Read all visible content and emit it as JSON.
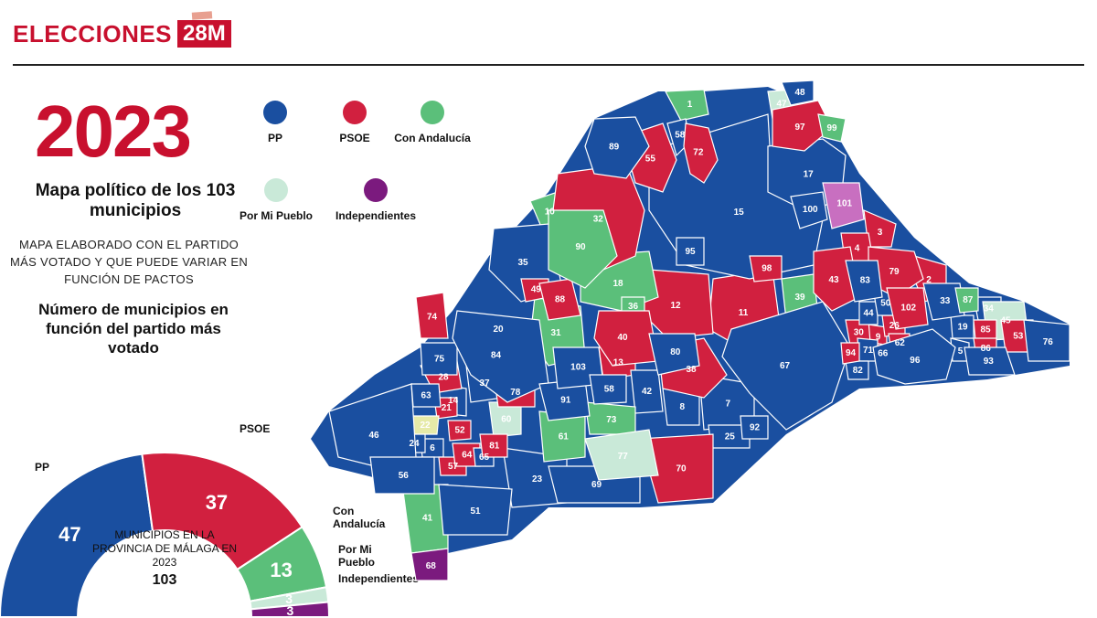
{
  "header": {
    "brand": "ELECCIONES",
    "tag": "28M"
  },
  "year": "2023",
  "subtitle": "Mapa político de los 103 municipios",
  "note": "MAPA ELABORADO CON EL PARTIDO MÁS VOTADO Y QUE PUEDE VARIAR EN FUNCIÓN DE PACTOS",
  "count_title": "Número de municipios en función del partido más votado",
  "legend": [
    {
      "label": "PP",
      "color": "#1a4fa0"
    },
    {
      "label": "PSOE",
      "color": "#d1203f"
    },
    {
      "label": "Con Andalucía",
      "color": "#5bbf7a"
    },
    {
      "label": "Por Mi Pueblo",
      "color": "#c9e9d8"
    },
    {
      "label": "Independientes",
      "color": "#7b1a7e"
    }
  ],
  "donut": {
    "center_text": "MUNICIPIOS EN LA PROVINCIA DE MÁLAGA EN 2023",
    "total": "103",
    "segments": [
      {
        "name": "PP",
        "value": 47,
        "color": "#1a4fa0"
      },
      {
        "name": "PSOE",
        "value": 37,
        "color": "#d1203f"
      },
      {
        "name": "Con Andalucía",
        "value": 13,
        "color": "#5bbf7a"
      },
      {
        "name": "Por Mi Pueblo",
        "value": 3,
        "color": "#c9e9d8"
      },
      {
        "name": "Independientes",
        "value": 3,
        "color": "#7b1a7e"
      }
    ],
    "labels": {
      "pp": "PP",
      "psoe": "PSOE",
      "con": "Con Andalucía",
      "pmp": "Por Mi Pueblo",
      "ind": "Independientes"
    }
  },
  "map": {
    "colors": {
      "PP": "#1a4fa0",
      "PSOE": "#d1203f",
      "CA": "#5bbf7a",
      "PMP": "#c9e9d8",
      "IND": "#c86fc0",
      "IND2": "#7b1a7e",
      "YEL": "#e6eaa8"
    },
    "municipalities": [
      {
        "n": "1",
        "p": "CA"
      },
      {
        "n": "47",
        "p": "PMP"
      },
      {
        "n": "48",
        "p": "PP"
      },
      {
        "n": "97",
        "p": "PSOE"
      },
      {
        "n": "99",
        "p": "CA"
      },
      {
        "n": "58",
        "p": "PP"
      },
      {
        "n": "72",
        "p": "PSOE"
      },
      {
        "n": "89",
        "p": "PP"
      },
      {
        "n": "55",
        "p": "PSOE"
      },
      {
        "n": "17",
        "p": "PP"
      },
      {
        "n": "32",
        "p": "PSOE"
      },
      {
        "n": "101",
        "p": "IND"
      },
      {
        "n": "100",
        "p": "PP"
      },
      {
        "n": "10",
        "p": "CA"
      },
      {
        "n": "90",
        "p": "CA"
      },
      {
        "n": "15",
        "p": "PP"
      },
      {
        "n": "3",
        "p": "PSOE"
      },
      {
        "n": "4",
        "p": "PSOE"
      },
      {
        "n": "79",
        "p": "PSOE"
      },
      {
        "n": "35",
        "p": "PP"
      },
      {
        "n": "95",
        "p": "PP"
      },
      {
        "n": "98",
        "p": "PSOE"
      },
      {
        "n": "43",
        "p": "PSOE"
      },
      {
        "n": "83",
        "p": "PP"
      },
      {
        "n": "2",
        "p": "PSOE"
      },
      {
        "n": "18",
        "p": "CA"
      },
      {
        "n": "49",
        "p": "PSOE"
      },
      {
        "n": "88",
        "p": "PSOE"
      },
      {
        "n": "12",
        "p": "PSOE"
      },
      {
        "n": "11",
        "p": "PSOE"
      },
      {
        "n": "39",
        "p": "CA"
      },
      {
        "n": "102",
        "p": "PSOE"
      },
      {
        "n": "33",
        "p": "PP"
      },
      {
        "n": "87",
        "p": "CA"
      },
      {
        "n": "34",
        "p": "PP"
      },
      {
        "n": "36",
        "p": "CA"
      },
      {
        "n": "74",
        "p": "PSOE"
      },
      {
        "n": "44",
        "p": "PP"
      },
      {
        "n": "50",
        "p": "PP"
      },
      {
        "n": "26",
        "p": "PSOE"
      },
      {
        "n": "20",
        "p": "PP"
      },
      {
        "n": "31",
        "p": "CA"
      },
      {
        "n": "40",
        "p": "PSOE"
      },
      {
        "n": "80",
        "p": "PP"
      },
      {
        "n": "30",
        "p": "PSOE"
      },
      {
        "n": "9",
        "p": "PSOE"
      },
      {
        "n": "19",
        "p": "PP"
      },
      {
        "n": "85",
        "p": "PSOE"
      },
      {
        "n": "45",
        "p": "PMP"
      },
      {
        "n": "76",
        "p": "PP"
      },
      {
        "n": "84",
        "p": "PP"
      },
      {
        "n": "67",
        "p": "PP"
      },
      {
        "n": "94",
        "p": "PSOE"
      },
      {
        "n": "71",
        "p": "PP"
      },
      {
        "n": "66",
        "p": "PSOE"
      },
      {
        "n": "62",
        "p": "PSOE"
      },
      {
        "n": "86",
        "p": "PSOE"
      },
      {
        "n": "53",
        "p": "PSOE"
      },
      {
        "n": "96",
        "p": "PP"
      },
      {
        "n": "5",
        "p": "PP"
      },
      {
        "n": "93",
        "p": "PP"
      },
      {
        "n": "82",
        "p": "PP"
      },
      {
        "n": "75",
        "p": "PP"
      },
      {
        "n": "103",
        "p": "PP"
      },
      {
        "n": "13",
        "p": "PSOE"
      },
      {
        "n": "38",
        "p": "PSOE"
      },
      {
        "n": "28",
        "p": "PSOE"
      },
      {
        "n": "37",
        "p": "PP"
      },
      {
        "n": "78",
        "p": "PSOE"
      },
      {
        "n": "91",
        "p": "PP"
      },
      {
        "n": "58b",
        "t": "58",
        "p": "PP"
      },
      {
        "n": "42",
        "p": "PP"
      },
      {
        "n": "8",
        "p": "PP"
      },
      {
        "n": "7",
        "p": "PP"
      },
      {
        "n": "63",
        "p": "PP"
      },
      {
        "n": "14",
        "p": "PP"
      },
      {
        "n": "21",
        "p": "PSOE"
      },
      {
        "n": "60",
        "p": "PMP"
      },
      {
        "n": "73",
        "p": "CA"
      },
      {
        "n": "46",
        "p": "PP"
      },
      {
        "n": "22",
        "p": "YEL"
      },
      {
        "n": "52",
        "p": "PSOE"
      },
      {
        "n": "92",
        "p": "PP"
      },
      {
        "n": "24",
        "p": "PP"
      },
      {
        "n": "6",
        "p": "PP"
      },
      {
        "n": "81",
        "p": "PSOE"
      },
      {
        "n": "61",
        "p": "CA"
      },
      {
        "n": "25",
        "p": "PP"
      },
      {
        "n": "64",
        "p": "PSOE"
      },
      {
        "n": "65",
        "p": "PP"
      },
      {
        "n": "77",
        "p": "PMP"
      },
      {
        "n": "70",
        "p": "PSOE"
      },
      {
        "n": "57",
        "p": "PSOE"
      },
      {
        "n": "23",
        "p": "PP"
      },
      {
        "n": "56",
        "p": "PP"
      },
      {
        "n": "69",
        "p": "PP"
      },
      {
        "n": "51",
        "p": "PP"
      },
      {
        "n": "41",
        "p": "CA"
      },
      {
        "n": "68",
        "p": "IND2"
      }
    ]
  }
}
